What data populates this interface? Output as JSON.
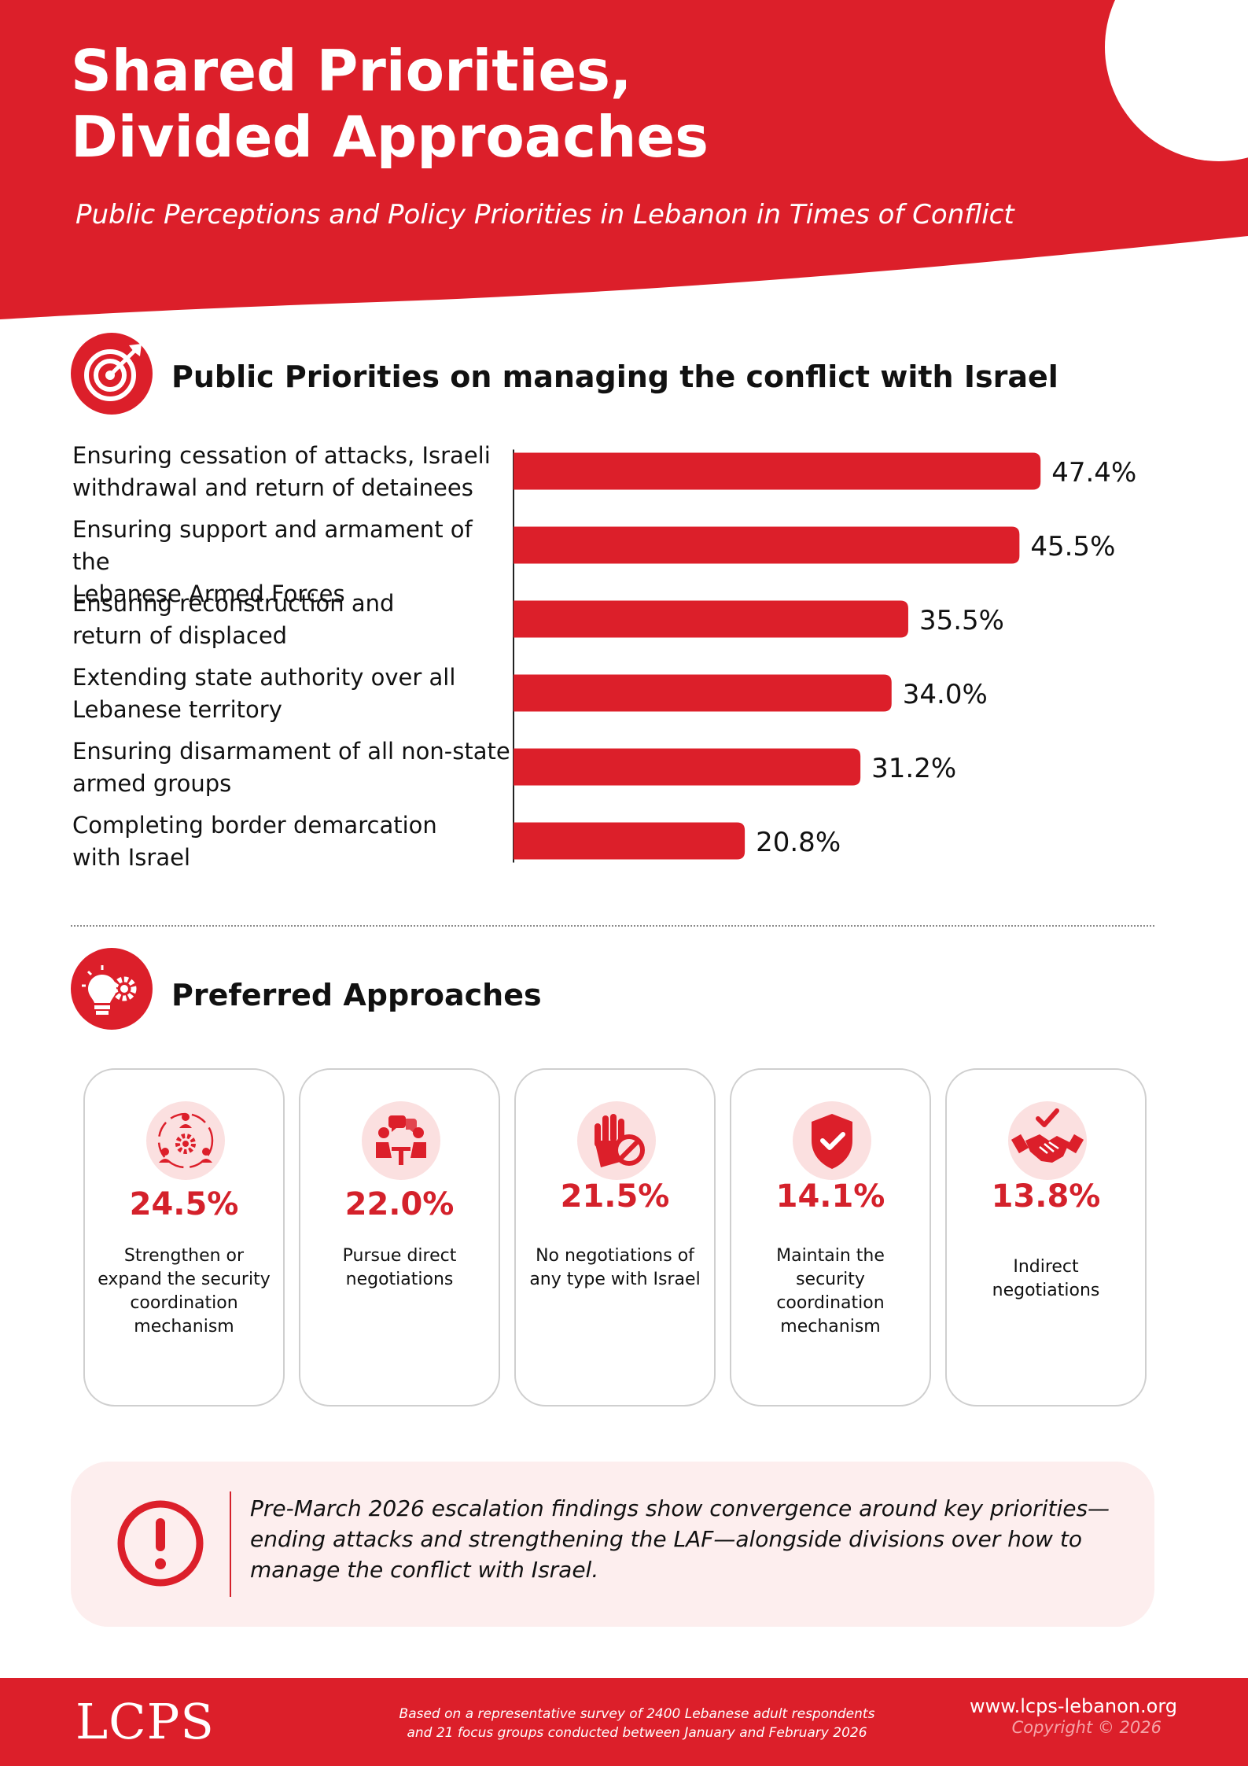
{
  "header": {
    "title_line1": "Shared Priorities,",
    "title_line2": "Divided Approaches",
    "subtitle": "Public Perceptions and Policy Priorities in Lebanon in Times of Conflict"
  },
  "priorities_section": {
    "heading": "Public Priorities on managing the conflict with Israel",
    "icon": "target-arrow-icon"
  },
  "chart_data": {
    "type": "bar",
    "orientation": "horizontal",
    "categories": [
      "Ensuring cessation of attacks, Israeli withdrawal and return of detainees",
      "Ensuring support and armament of the Lebanese Armed Forces",
      "Ensuring reconstruction and return of displaced",
      "Extending state authority over all Lebanese territory",
      "Ensuring disarmament of all non-state armed groups",
      "Completing border demarcation with Israel"
    ],
    "category_lines": [
      [
        "Ensuring cessation of attacks, Israeli",
        "withdrawal and return of detainees"
      ],
      [
        "Ensuring support and armament of the",
        "Lebanese Armed Forces"
      ],
      [
        "Ensuring reconstruction and",
        "return of displaced"
      ],
      [
        "Extending state authority over all",
        "Lebanese territory"
      ],
      [
        "Ensuring disarmament of all non-state",
        "armed groups"
      ],
      [
        "Completing border demarcation",
        "with Israel"
      ]
    ],
    "values": [
      47.4,
      45.5,
      35.5,
      34.0,
      31.2,
      20.8
    ],
    "data_labels": [
      "47.4%",
      "45.5%",
      "35.5%",
      "34.0%",
      "31.2%",
      "20.8%"
    ],
    "unit": "%",
    "bar_color": "#dc1f2a",
    "xlim": [
      0,
      50
    ],
    "grid": false,
    "legend": "none"
  },
  "approaches_section": {
    "heading": "Preferred Approaches",
    "icon": "lightbulb-gear-icon",
    "cards": [
      {
        "value": "24.5%",
        "text": "Strengthen or expand the security coordination mechanism",
        "icon": "team-gear-icon"
      },
      {
        "value": "22.0%",
        "text": "Pursue direct negotiations",
        "icon": "meeting-chat-icon"
      },
      {
        "value": "21.5%",
        "text": "No negotiations of any type with Israel",
        "icon": "hand-stop-icon"
      },
      {
        "value": "14.1%",
        "text": "Maintain the security coordination mechanism",
        "icon": "shield-check-icon"
      },
      {
        "value": "13.8%",
        "text": "Indirect negotiations",
        "icon": "handshake-check-icon"
      }
    ]
  },
  "note": {
    "text": "Pre-March 2026 escalation findings show convergence around key priorities—ending attacks and strengthening the LAF—alongside divisions over how to manage the conflict with Israel.",
    "icon": "exclamation-circle-icon"
  },
  "footer": {
    "logo": "LCPS",
    "note_line1": "Based on a representative survey of 2400 Lebanese adult respondents",
    "note_line2": "and 21 focus groups conducted between January and February 2026",
    "url": "www.lcps-lebanon.org",
    "copyright": "Copyright © 2026"
  },
  "colors": {
    "primary_red": "#dc1f2a",
    "value_red": "#d4212b",
    "icon_bg_pink": "#fbe0e0",
    "note_bg": "#fdeeee",
    "card_border": "#cfcfcf"
  }
}
